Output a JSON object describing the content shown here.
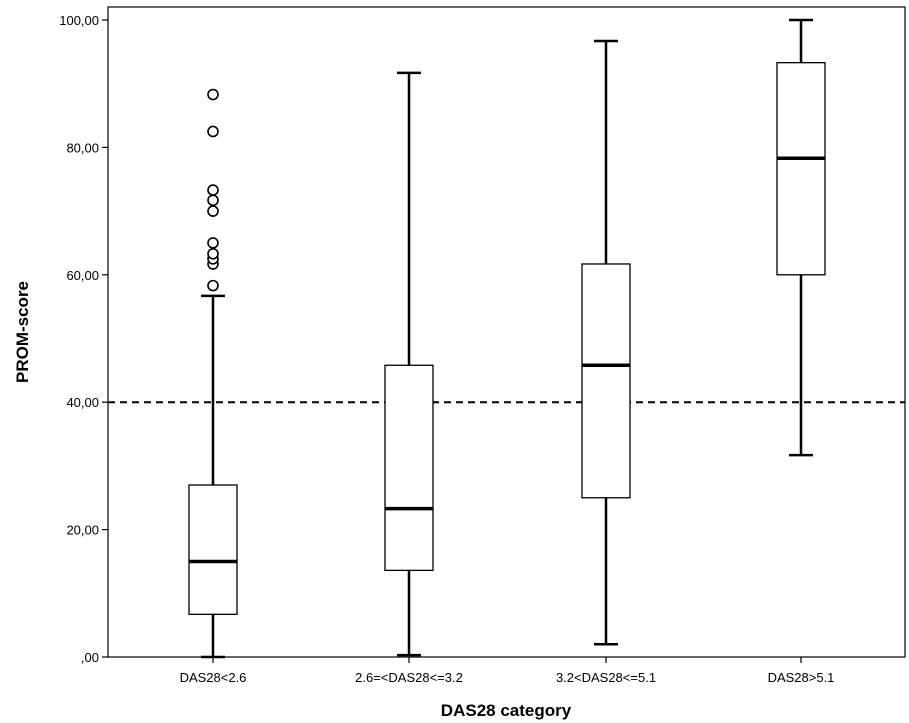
{
  "chart_data": {
    "type": "boxplot",
    "xlabel": "DAS28 category",
    "ylabel": "PROM-score",
    "ylim": [
      0,
      100
    ],
    "yticks": [
      0,
      20,
      40,
      60,
      80,
      100
    ],
    "ytick_labels": [
      ",00",
      "20,00",
      "40,00",
      "60,00",
      "80,00",
      "100,00"
    ],
    "categories": [
      "DAS28<2.6",
      "2.6=<DAS28<=3.2",
      "3.2<DAS28<=5.1",
      "DAS28>5.1"
    ],
    "boxes": [
      {
        "category": "DAS28<2.6",
        "whisker_low": 0,
        "q1": 6.7,
        "median": 15.0,
        "q3": 27.0,
        "whisker_high": 56.7,
        "outliers": [
          58.3,
          61.7,
          62.5,
          63.3,
          65.0,
          70.0,
          71.7,
          73.3,
          82.5,
          88.3
        ]
      },
      {
        "category": "2.6=<DAS28<=3.2",
        "whisker_low": 0.3,
        "q1": 13.6,
        "median": 23.3,
        "q3": 45.8,
        "whisker_high": 91.7,
        "outliers": []
      },
      {
        "category": "3.2<DAS28<=5.1",
        "whisker_low": 2.0,
        "q1": 25.0,
        "median": 45.8,
        "q3": 61.7,
        "whisker_high": 96.7,
        "outliers": []
      },
      {
        "category": "DAS28>5.1",
        "whisker_low": 31.7,
        "q1": 60.0,
        "median": 78.3,
        "q3": 93.3,
        "whisker_high": 100.0,
        "outliers": []
      }
    ],
    "reference_line": {
      "y": 40,
      "style": "dashed"
    },
    "grid": false,
    "legend": "none"
  }
}
